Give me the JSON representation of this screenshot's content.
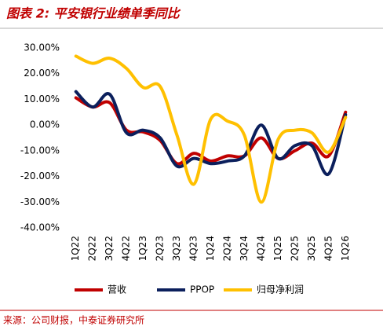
{
  "chart_data": {
    "type": "line",
    "title": "图表 2:  平安银行业绩单季同比",
    "source": "来源：公司财报，中泰证券研究所",
    "categories": [
      "1Q22",
      "2Q22",
      "3Q22",
      "4Q22",
      "1Q23",
      "2Q23",
      "3Q23",
      "4Q23",
      "1Q24",
      "2Q24",
      "3Q24",
      "4Q24",
      "1Q25",
      "2Q25",
      "3Q25",
      "4Q25",
      "1Q26"
    ],
    "series": [
      {
        "name": "营收",
        "color": "#c00000",
        "values": [
          10.6,
          7,
          8.7,
          -2,
          -2.7,
          -6,
          -15,
          -11,
          -14,
          -12,
          -12,
          -5,
          -13,
          -10,
          -7,
          -12,
          5
        ]
      },
      {
        "name": "PPOP",
        "color": "#0b1f5c",
        "values": [
          13,
          7,
          12,
          -3,
          -2,
          -5,
          -16,
          -13,
          -15,
          -14,
          -12,
          0,
          -13,
          -8,
          -8,
          -19,
          4
        ]
      },
      {
        "name": "归母净利润",
        "color": "#ffc000",
        "values": [
          26.8,
          24,
          26,
          22,
          14.6,
          15,
          -4,
          -23,
          2.3,
          1.5,
          -4,
          -30,
          -5.6,
          -2,
          -3,
          -10.5,
          3
        ]
      }
    ],
    "ylim": [
      -40,
      30
    ],
    "yticks": [
      {
        "value": 30,
        "label": "30.00%"
      },
      {
        "value": 20,
        "label": "20.00%"
      },
      {
        "value": 10,
        "label": "10.00%"
      },
      {
        "value": 0,
        "label": "0.00%"
      },
      {
        "value": -10,
        "label": "-10.00%"
      },
      {
        "value": -20,
        "label": "-20.00%"
      },
      {
        "value": -30,
        "label": "-30.00%"
      },
      {
        "value": -40,
        "label": "-40.00%"
      }
    ],
    "grid": false
  }
}
